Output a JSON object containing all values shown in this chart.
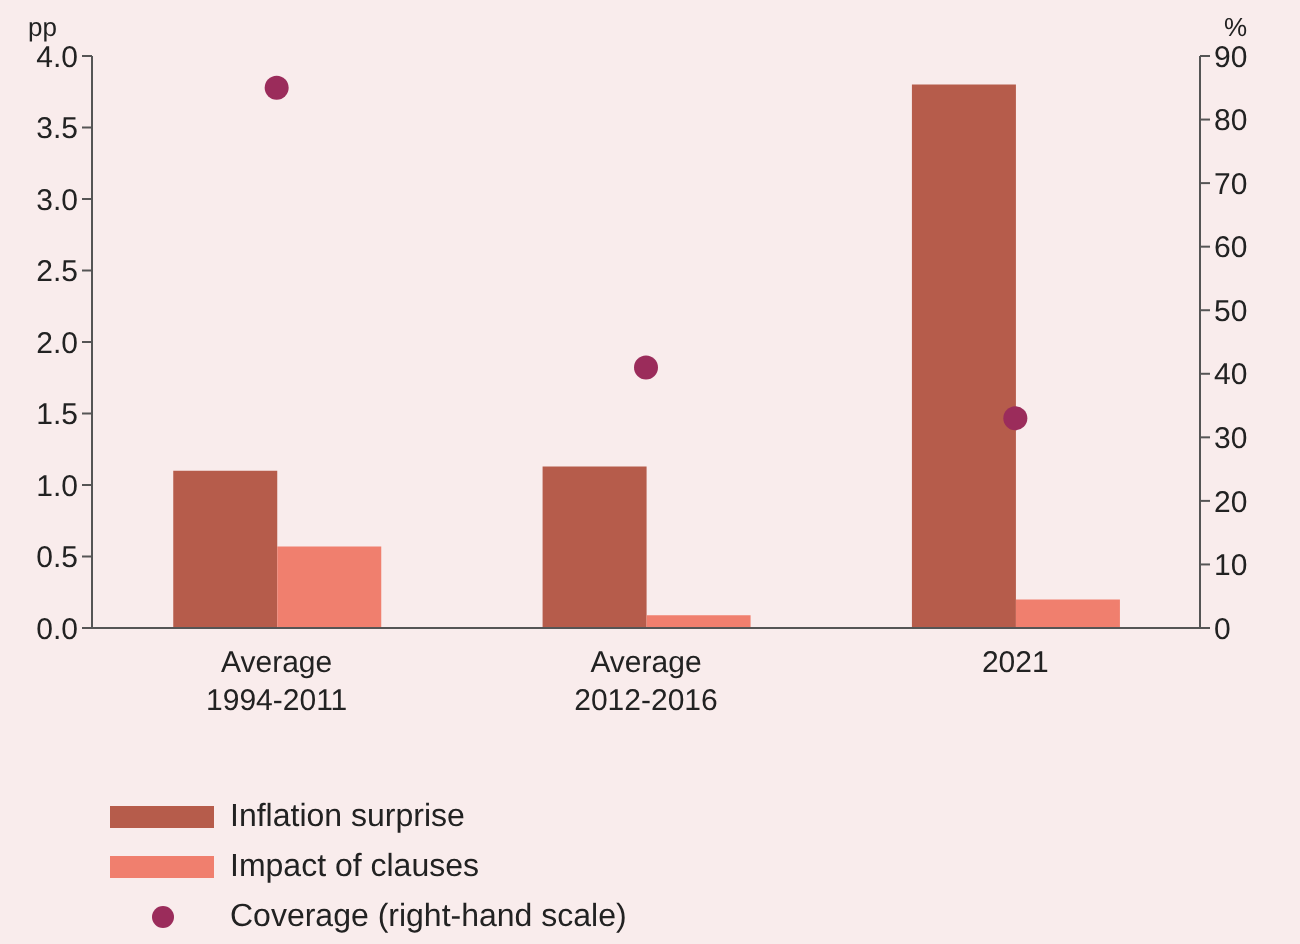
{
  "chart_data": {
    "type": "bar",
    "categories": [
      "Average 1994-2011",
      "Average 2012-2016",
      "2021"
    ],
    "ylabel": "pp",
    "y2label": "%",
    "series": [
      {
        "name": "Inflation surprise",
        "color": "#b65c4b",
        "values": [
          1.1,
          1.13,
          3.8
        ]
      },
      {
        "name": "Impact of clauses",
        "color": "#f07f6e",
        "values": [
          0.57,
          0.09,
          0.2
        ]
      },
      {
        "name": "Coverage (right-hand scale)",
        "type": "scatter",
        "axis": "y2",
        "color": "#9b2c5b",
        "values": [
          85,
          41,
          33
        ]
      }
    ],
    "ylim": [
      0,
      4
    ],
    "yticks": [
      {
        "value": 0,
        "label": "0.0"
      },
      {
        "value": 0.5,
        "label": "0.5"
      },
      {
        "value": 1,
        "label": "1.0"
      },
      {
        "value": 1.5,
        "label": "1.5"
      },
      {
        "value": 2,
        "label": "2.0"
      },
      {
        "value": 2.5,
        "label": "2.5"
      },
      {
        "value": 3,
        "label": "3.0"
      },
      {
        "value": 3.5,
        "label": "3.5"
      },
      {
        "value": 4,
        "label": "4.0"
      }
    ],
    "y2lim": [
      0,
      90
    ],
    "y2ticks": [
      0,
      10,
      20,
      30,
      40,
      50,
      60,
      70,
      80,
      90
    ],
    "grid": false,
    "legend": "bottom left"
  }
}
